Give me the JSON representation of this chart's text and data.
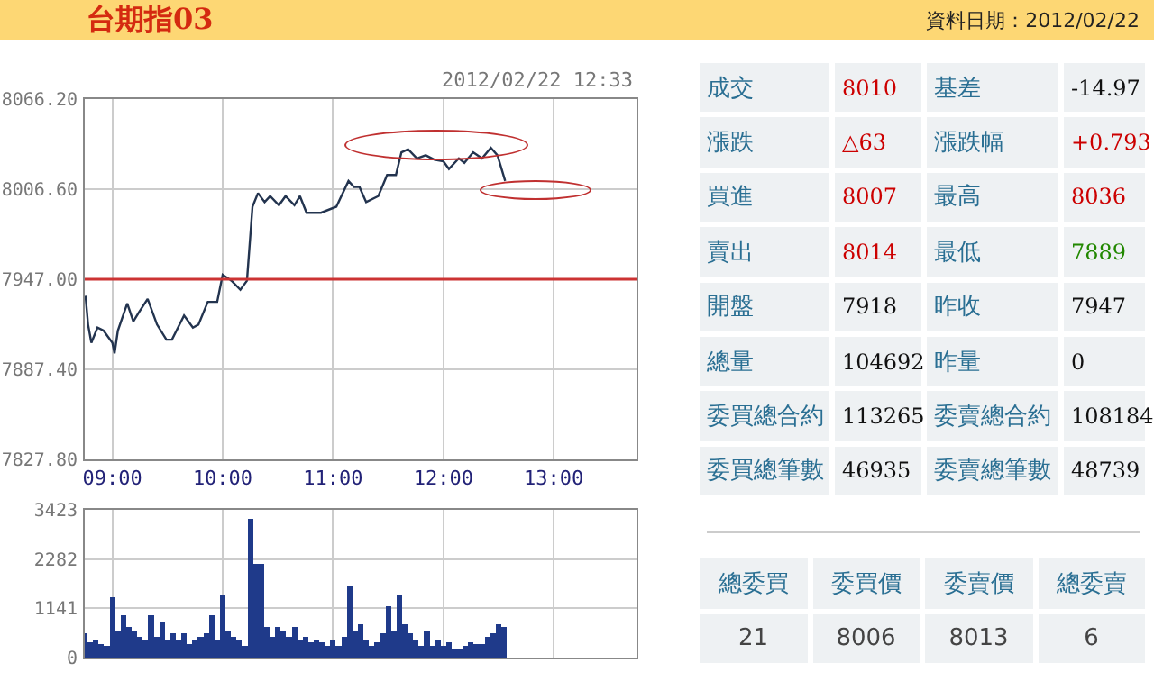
{
  "chart_data": [
    {
      "type": "other",
      "title": "台期指03",
      "subtitle": "資料日期：2012/02/22"
    },
    {
      "type": "line",
      "annotations": [
        "2012/02/22 12:33"
      ],
      "x": [
        8.757,
        8.78,
        8.81,
        8.865,
        8.92,
        9.0,
        9.02,
        9.05,
        9.135,
        9.19,
        9.24,
        9.32,
        9.405,
        9.49,
        9.54,
        9.65,
        9.73,
        9.78,
        9.865,
        9.95,
        10.0,
        10.08,
        10.16,
        10.22,
        10.27,
        10.32,
        10.38,
        10.43,
        10.51,
        10.57,
        10.65,
        10.7,
        10.76,
        10.89,
        11.03,
        11.14,
        11.19,
        11.24,
        11.3,
        11.41,
        11.49,
        11.57,
        11.62,
        11.68,
        11.76,
        11.84,
        11.92,
        12.0,
        12.05,
        12.14,
        12.19,
        12.27,
        12.35,
        12.43,
        12.49,
        12.56
      ],
      "series": [
        {
          "color": "#23344f",
          "values": [
            7936,
            7917,
            7905,
            7915,
            7913,
            7905,
            7898,
            7913,
            7931,
            7919,
            7925,
            7934,
            7917,
            7907,
            7907,
            7923,
            7915,
            7917,
            7932,
            7932,
            7950,
            7946,
            7940,
            7946,
            7995,
            8004,
            7998,
            8002,
            7996,
            8002,
            7996,
            8002,
            7991,
            7991,
            7995,
            8012,
            8008,
            8008,
            7998,
            8002,
            8016,
            8016,
            8031,
            8033,
            8027,
            8029,
            8026,
            8025,
            8020,
            8027,
            8024,
            8031,
            8027,
            8034,
            8029,
            8012
          ]
        }
      ],
      "xlim": [
        8.75,
        13.75
      ],
      "xticks": [
        {
          "value": 9,
          "label": "09:00"
        },
        {
          "value": 10,
          "label": "10:00"
        },
        {
          "value": 11,
          "label": "11:00"
        },
        {
          "value": 12,
          "label": "12:00"
        },
        {
          "value": 13,
          "label": "13:00"
        }
      ],
      "ylim": [
        7827.8,
        8066.2
      ],
      "yticks": [
        {
          "value": 7827.8,
          "label": "7827.80"
        },
        {
          "value": 7887.4,
          "label": "7887.40"
        },
        {
          "value": 7947,
          "label": "7947.00"
        },
        {
          "value": 8006.6,
          "label": "8006.60"
        },
        {
          "value": 8066.2,
          "label": "8066.20"
        }
      ],
      "ref_lines": [
        {
          "axis": "y",
          "value": 7947,
          "color": "#cc3333"
        }
      ],
      "grid": true
    },
    {
      "type": "bar",
      "x": [
        8.75,
        8.8,
        8.85,
        8.9,
        8.95,
        9.0,
        9.05,
        9.1,
        9.15,
        9.2,
        9.25,
        9.3,
        9.35,
        9.4,
        9.45,
        9.5,
        9.55,
        9.6,
        9.65,
        9.7,
        9.75,
        9.8,
        9.85,
        9.9,
        9.95,
        10.0,
        10.05,
        10.1,
        10.15,
        10.2,
        10.25,
        10.3,
        10.35,
        10.4,
        10.45,
        10.5,
        10.55,
        10.6,
        10.65,
        10.7,
        10.75,
        10.8,
        10.85,
        10.9,
        10.95,
        11.0,
        11.05,
        11.1,
        11.15,
        11.2,
        11.25,
        11.3,
        11.35,
        11.4,
        11.45,
        11.5,
        11.55,
        11.6,
        11.65,
        11.7,
        11.75,
        11.8,
        11.85,
        11.9,
        11.95,
        12.0,
        12.05,
        12.1,
        12.15,
        12.2,
        12.25,
        12.3,
        12.35,
        12.4,
        12.45,
        12.5,
        12.55
      ],
      "series": [
        {
          "color": "#1f3a8a",
          "values": [
            560,
            350,
            420,
            320,
            280,
            1400,
            630,
            980,
            700,
            630,
            490,
            420,
            980,
            490,
            840,
            420,
            560,
            420,
            560,
            320,
            420,
            490,
            560,
            980,
            420,
            1470,
            630,
            490,
            420,
            280,
            3210,
            2170,
            2170,
            700,
            490,
            700,
            630,
            490,
            700,
            420,
            490,
            350,
            420,
            350,
            280,
            420,
            280,
            490,
            1680,
            630,
            770,
            420,
            280,
            350,
            560,
            1190,
            630,
            1470,
            770,
            560,
            420,
            280,
            630,
            280,
            420,
            280,
            350,
            210,
            210,
            280,
            350,
            320,
            320,
            490,
            560,
            770,
            700
          ]
        }
      ],
      "xlim": [
        8.75,
        13.75
      ],
      "xticks": [
        {
          "value": 9,
          "label": null
        },
        {
          "value": 10,
          "label": null
        },
        {
          "value": 11,
          "label": null
        },
        {
          "value": 12,
          "label": null
        },
        {
          "value": 13,
          "label": null
        }
      ],
      "ylim": [
        0,
        3423
      ],
      "yticks": [
        0,
        1141,
        2282,
        3423
      ],
      "grid": true,
      "tick_labels": "y"
    },
    {
      "type": "other",
      "annotations": [
        "成交",
        "8010",
        "基差",
        "-14.97",
        "漲跌",
        "△63",
        "漲跌幅",
        "+0.793",
        "買進",
        "8007",
        "最高",
        "8036",
        "賣出",
        "8014",
        "最低",
        "7889",
        "開盤",
        "7918",
        "昨收",
        "7947",
        "總量",
        "104692",
        "昨量",
        "0",
        "委買總合約",
        "113265",
        "委賣總合約",
        "108184",
        "委買總筆數",
        "46935",
        "委賣總筆數",
        "48739"
      ],
      "colors": [
        "#2a6f93",
        "#cc0000",
        "#2a6f93",
        "#111111",
        "#2a6f93",
        "#cc0000",
        "#2a6f93",
        "#cc0000",
        "#2a6f93",
        "#cc0000",
        "#2a6f93",
        "#cc0000",
        "#2a6f93",
        "#cc0000",
        "#2a6f93",
        "#228800",
        "#2a6f93",
        "#111111",
        "#2a6f93",
        "#111111",
        "#2a6f93",
        "#111111",
        "#2a6f93",
        "#111111",
        "#2a6f93",
        "#111111",
        "#2a6f93",
        "#111111",
        "#2a6f93",
        "#111111",
        "#2a6f93",
        "#111111"
      ]
    },
    {
      "type": "other",
      "annotations": [
        "總委買",
        "委買價",
        "委賣價",
        "總委賣",
        "21",
        "8006",
        "8013",
        "6"
      ]
    }
  ]
}
